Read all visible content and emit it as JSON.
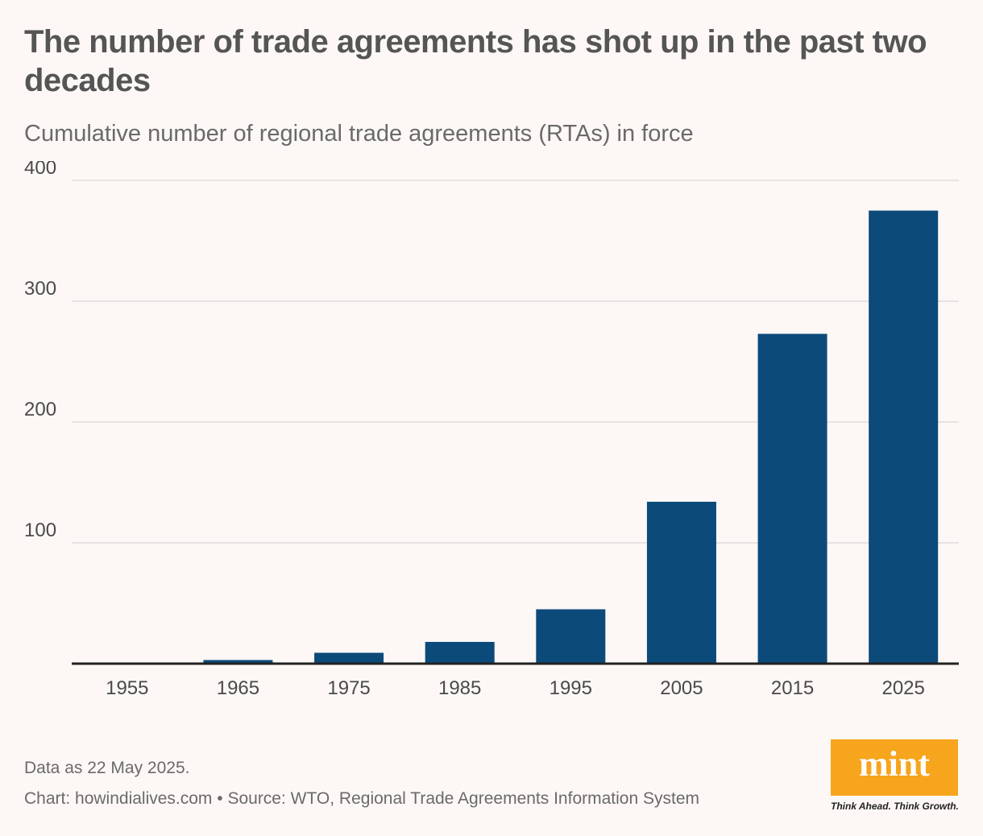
{
  "header": {
    "title": "The number of trade agreements has shot up in the past two decades",
    "subtitle": "Cumulative number of regional trade agreements (RTAs) in force"
  },
  "footer": {
    "note": "Data as 22 May 2025.",
    "source": "Chart: howindialives.com • Source: WTO, Regional Trade Agreements Information System"
  },
  "brand": {
    "logo_text": "mint",
    "tagline": "Think Ahead. Think Growth.",
    "logo_color": "#f7a51c"
  },
  "chart_data": {
    "type": "bar",
    "title": "The number of trade agreements has shot up in the past two decades",
    "subtitle": "Cumulative number of regional trade agreements (RTAs) in force",
    "categories": [
      "1955",
      "1965",
      "1975",
      "1985",
      "1995",
      "2005",
      "2015",
      "2025"
    ],
    "values": [
      1,
      3,
      9,
      18,
      45,
      134,
      273,
      375
    ],
    "ylim": [
      0,
      400
    ],
    "yticks": [
      100,
      200,
      300,
      400
    ],
    "grid": true,
    "bar_color": "#0c4a7a"
  }
}
